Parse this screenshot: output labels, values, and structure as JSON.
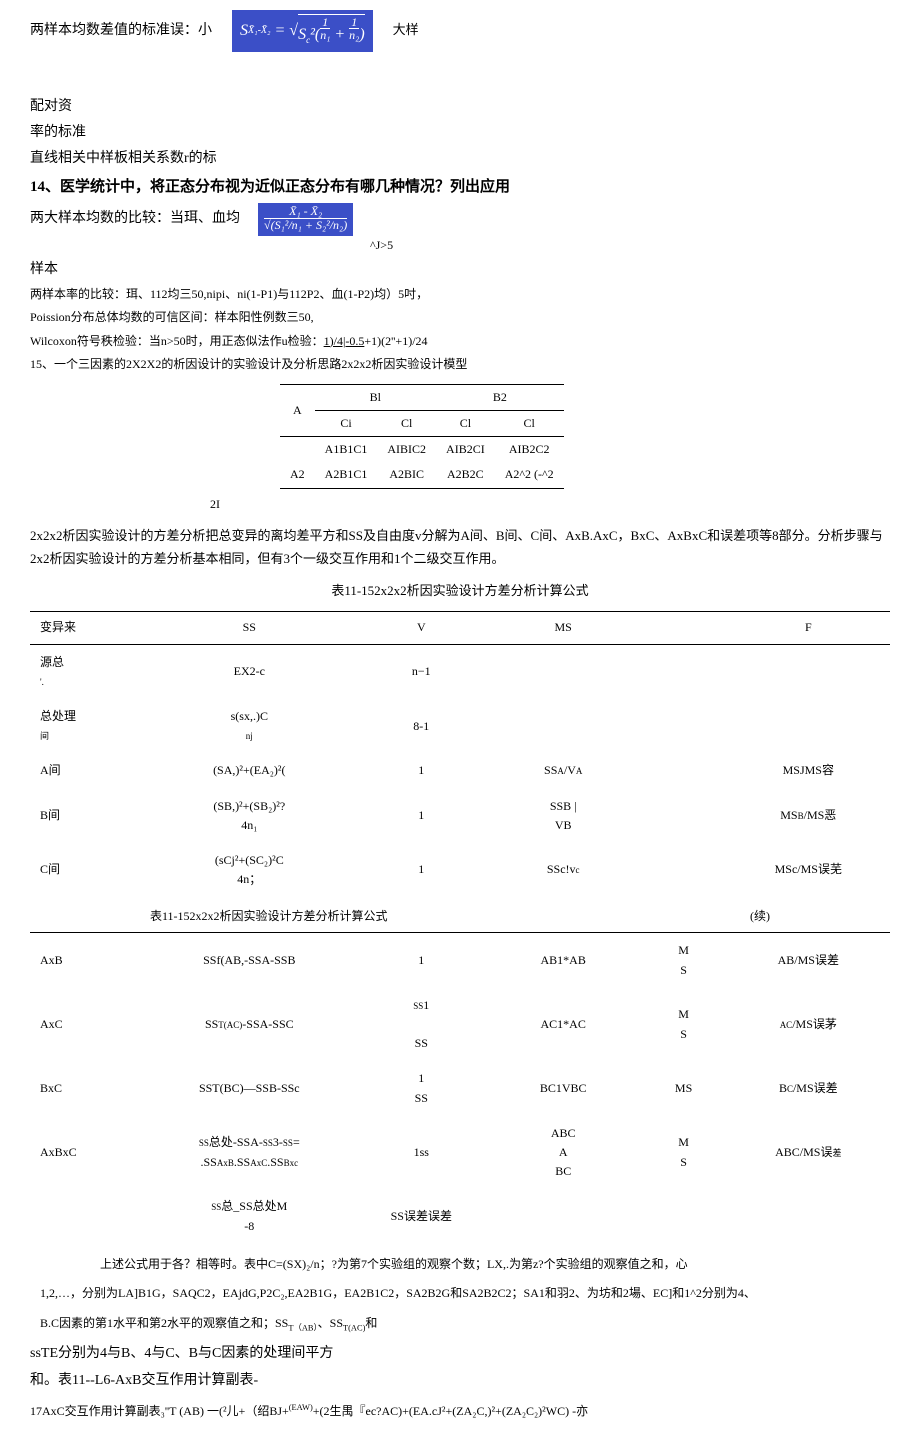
{
  "top": {
    "left": "两样本均数差值的标准误：小",
    "formula_html": "S<sub>X̄₁-X̄₂</sub> = √(S<sub>c</sub>²(1/n₁ + 1/n₂))",
    "right": "大样"
  },
  "lines": {
    "l1": "配对资",
    "l2": "率的标准",
    "l3": "直线相关中样板相关系数r的标",
    "l4": "14、医学统计中，将正态分布视为近似正态分布有哪几种情况？列出应用",
    "l5": "两大样本均数的比较：当珥、血均",
    "l5_formula": "X̄₁-X̄₂ / √(S₁²/n₁ + S₂²/n₂)",
    "l5_after": "^J>5",
    "l6": "样本",
    "l7": "两样本率的比较：珥、112均三50,nipi、ni(1-P1)与112P2、血(1-P2)均）5吋，",
    "l8": "Poission分布总体均数的可信区间：样本阳性例数三50,",
    "l9_a": "Wilcoxon符号秩检验：当n>50时，用正态似法作u检验：",
    "l9_b": "1)/4|-0.5",
    "l9_c": "+1)(2''+1)/24",
    "l10": "15、一个三因素的2X2X2的析因设计的实验设计及分析思路2x2x2析因实验设计模型"
  },
  "design_table": {
    "h_a": "A",
    "h_b1": "Bl",
    "h_b2": "B2",
    "sub_ci": "Ci",
    "sub_cl": "Cl",
    "r1": [
      "",
      "A1B1C1",
      "AIBIC2",
      "AIB2CI",
      "AIB2C2"
    ],
    "r2": [
      "A2",
      "A2B1C1",
      "A2BIC",
      "A2B2C",
      "A2^2 (-^2"
    ],
    "off": "2I"
  },
  "body1": "2x2x2析因实验设计的方差分析把总变异的离均差平方和SS及自由度v分解为A间、B间、C间、AxB.AxC，BxC、AxBxC和误差项等8部分。分析步骤与2x2析因实验设计的方差分析基本相同，但有3个一级交互作用和1个二级交互作用。",
  "caption1": "表11-152x2x2析因实验设计方差分析计算公式",
  "anova1": {
    "head": [
      "变异来",
      "SS",
      "V",
      "MS",
      "",
      "F"
    ],
    "rows": [
      {
        "c1": "源总",
        "c1b": "'.",
        "c2": "EX2-c",
        "c3": "n−1",
        "c4": "",
        "c5": "",
        "c6": ""
      },
      {
        "c1": "总处理",
        "c1b": "间",
        "c2": "s(sx,.)C",
        "c2b": "nj",
        "c3": "8-1",
        "c4": "",
        "c5": "",
        "c6": ""
      },
      {
        "c1": "A间",
        "c2": "(SA,)²+(EA₂)²(",
        "c3": "1",
        "c4": "SS<span class='tiny'>A</span>/V<span class='tiny'>A</span>",
        "c5": "",
        "c6": "MSJMS容"
      },
      {
        "c1": "B间",
        "c2": "(SB,)²+(SB₂)²?<br>4n₁",
        "c3": "1",
        "c4": "SSB |<br>VB",
        "c5": "",
        "c6": "MS<span class='tiny'>B</span>/MS恶"
      },
      {
        "c1": "C间",
        "c2": "(sCj²+(SC₂)²C<br>4n；",
        "c3": "1",
        "c4": "SSc!v<span class='tiny'>c</span>",
        "c5": "",
        "c6": "MSc/MS误芜"
      }
    ]
  },
  "caption2_left": "表11-152x2x2析因实验设计方差分析计算公式",
  "caption2_right": "(续)",
  "anova2": {
    "rows": [
      {
        "c1": "AxB",
        "c2": "SSf(AB,-SSA-SSB",
        "c3": "1",
        "c4": "AB1*AB",
        "c5": "M<br>S",
        "c6": "AB/MS误差"
      },
      {
        "c1": "AxC",
        "c2": "SS<span class='tiny'>T(AC)</span>-SSA-SSC",
        "c3": "<span class='tiny'>SS</span>1<br><br>SS",
        "c4": "AC1*AC",
        "c5": "M<br>S",
        "c6": "<span class='tiny'>AC</span>/MS误茅"
      },
      {
        "c1": "BxC",
        "c2": "SST(BC)—SSB-SSc",
        "c3": "1<br>SS",
        "c4": "BC1VBC",
        "c5": "MS",
        "c6": "B<span class='tiny'>C</span>/MS误差"
      },
      {
        "c1": "AxBxC",
        "c2": "<span class='tiny'>SS</span>总处-SSA-<span class='tiny'>SS</span>3-<span class='tiny'>SS</span>=<br>.SS<span class='tiny'>AxB</span>.SS<span class='tiny'>AxC</span>.SS<span class='tiny'>Bxc</span>",
        "c3": "1ss",
        "c4": "ABC<br>A<br>BC",
        "c5": "M<br>S",
        "c6": "ABC/MS误<span class='tiny'>差</span>"
      },
      {
        "c1": "",
        "c2": "<span class='tiny'>SS</span>总_SS总处M<br>-8",
        "c3": "SS误差误差",
        "c4": "",
        "c5": "",
        "c6": ""
      }
    ]
  },
  "footer": {
    "f1": "上述公式用于各？相等时。表中C=(SX)₂/n；?为第7个实验组的观察个数；LX,.为第z?个实验组的观察值之和，心",
    "f2": "1,2,…，分别为LA]B1G，SAQC2，EAjdG,P2C₂,EA2B1G，EA2B1C2，SA2B2G和SA2B2C2；SA1和羽2、为坊和2場、EC]和1^2分别为4、",
    "f3_a": "B.C因素的第1水平和第2水平的观察值之和；SS",
    "f3_b": "T（AB）",
    "f3_c": "、SS",
    "f3_d": "T(AC)",
    "f3_e": "和",
    "f4": "ssTE分别为4与B、4与C、B与C因素的处理间平方",
    "f5": "和。表11--L6-AxB交互作用计算副表-",
    "f6": "17AxC交互作用计算副表₃''T (AB) 一(²儿+（绍BJ+<sup>(EAW)</sup>+(2生禺『ec?AC)+(EA.cJ²+(ZA₂C,)²+(ZA₂C₂)²WC) -亦"
  }
}
